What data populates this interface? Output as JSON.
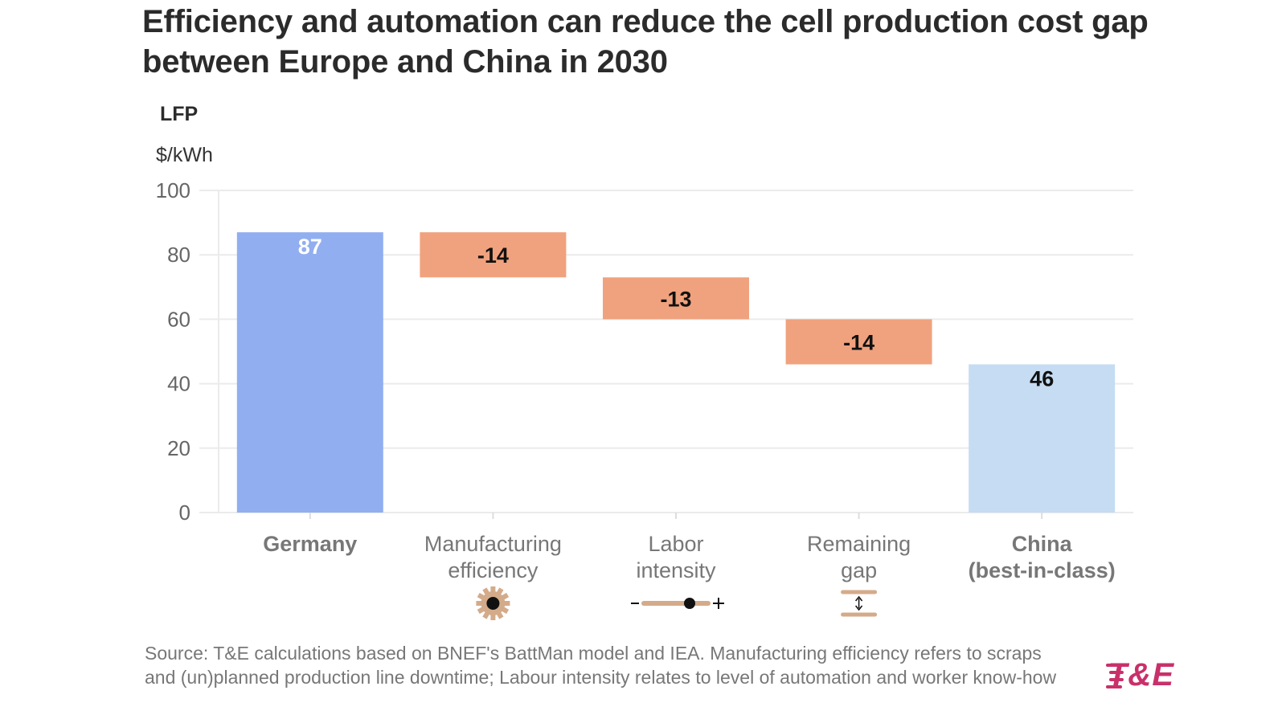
{
  "title_lines": [
    "Efficiency and automation can reduce the cell production cost gap",
    "between Europe and China in 2030"
  ],
  "source": "Source: T&E calculations based on BNEF's BattMan model and IEA. Manufacturing efficiency refers to scraps and (un)planned production line downtime; Labour intensity relates to level of automation and worker know-how",
  "logo": "T&E",
  "colors": {
    "total": "#91aef0",
    "decrease": "#f0a27e",
    "end": "#c5dcf2",
    "grid": "#ebebeb",
    "icon": "#d4ab8a"
  },
  "chart_data": {
    "type": "bar",
    "subtype": "waterfall",
    "subtitle": "LFP",
    "ylabel": "$/kWh",
    "ylim": [
      0,
      100
    ],
    "yticks": [
      0,
      20,
      40,
      60,
      80,
      100
    ],
    "categories": [
      {
        "lines": [
          "Germany"
        ],
        "bold": true,
        "icon": "",
        "kind": "total",
        "value": 87,
        "label": "87",
        "label_color": "#ffffff"
      },
      {
        "lines": [
          "Manufacturing",
          "efficiency"
        ],
        "bold": false,
        "icon": "gear-icon",
        "kind": "decrease",
        "value": -14,
        "label": "-14",
        "label_color": "#111111"
      },
      {
        "lines": [
          "Labor",
          "intensity"
        ],
        "bold": false,
        "icon": "slider-icon",
        "kind": "decrease",
        "value": -13,
        "label": "-13",
        "label_color": "#111111"
      },
      {
        "lines": [
          "Remaining",
          "gap"
        ],
        "bold": false,
        "icon": "gap-icon",
        "kind": "decrease",
        "value": -14,
        "label": "-14",
        "label_color": "#111111"
      },
      {
        "lines": [
          "China",
          "(best-in-class)"
        ],
        "bold": true,
        "icon": "",
        "kind": "end",
        "value": 46,
        "label": "46",
        "label_color": "#111111"
      }
    ]
  }
}
